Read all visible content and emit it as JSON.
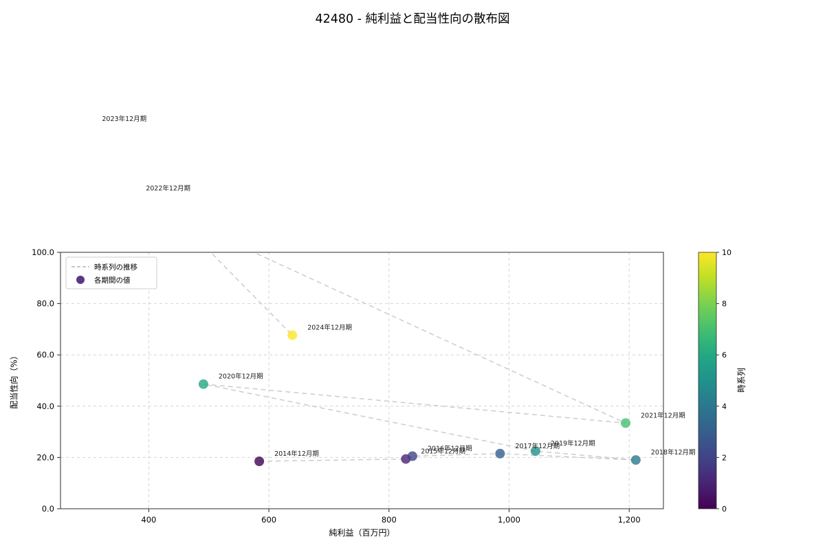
{
  "chart_data": {
    "type": "scatter",
    "title": "42480 - 純利益と配当性向の散布図",
    "xlabel": "純利益（百万円）",
    "ylabel": "配当性向（%）",
    "xlim": [
      253,
      1257
    ],
    "ylim": [
      0,
      100
    ],
    "xticks": [
      400,
      600,
      800,
      1000,
      1200
    ],
    "xtick_labels": [
      "400",
      "600",
      "800",
      "1,000",
      "1,200"
    ],
    "yticks": [
      0,
      20,
      40,
      60,
      80,
      100
    ],
    "ytick_labels": [
      "0.0",
      "20.0",
      "40.0",
      "60.0",
      "80.0",
      "100.0"
    ],
    "grid": true,
    "legend": {
      "position": "top-left",
      "items": [
        {
          "label": "時系列の推移",
          "marker": "dashed-line",
          "color": "#b5b5b5"
        },
        {
          "label": "各期間の値",
          "marker": "dot",
          "color": "#482475"
        }
      ]
    },
    "trend_line_color": "#c9c9c9",
    "grid_color": "#d3d3d3",
    "colorbar": {
      "label": "時系列",
      "min": 0,
      "max": 10,
      "ticks": [
        0,
        2,
        4,
        6,
        8,
        10
      ],
      "tick_labels": [
        "0",
        "2",
        "4",
        "6",
        "8",
        "10"
      ],
      "viridis_stops": [
        "#440154",
        "#482475",
        "#414487",
        "#355f8d",
        "#2a788e",
        "#21918c",
        "#22a884",
        "#44bf70",
        "#7ad151",
        "#bddf26",
        "#fde725"
      ]
    },
    "points": [
      {
        "label": "2014年12月期",
        "x": 584,
        "y": 18.5,
        "t": 0,
        "color": "#440154"
      },
      {
        "label": "2015年12月期",
        "x": 828,
        "y": 19.4,
        "t": 1,
        "color": "#482475"
      },
      {
        "label": "2016年12月期",
        "x": 839,
        "y": 20.5,
        "t": 2,
        "color": "#414487"
      },
      {
        "label": "2017年12月期",
        "x": 985,
        "y": 21.5,
        "t": 3,
        "color": "#355f8d"
      },
      {
        "label": "2018年12月期",
        "x": 1211,
        "y": 19.0,
        "t": 4,
        "color": "#2a788e"
      },
      {
        "label": "2019年12月期",
        "x": 1044,
        "y": 22.5,
        "t": 5,
        "color": "#21918c"
      },
      {
        "label": "2020年12月期",
        "x": 491,
        "y": 48.6,
        "t": 6,
        "color": "#22a884"
      },
      {
        "label": "2021年12月期",
        "x": 1194,
        "y": 33.4,
        "t": 7,
        "color": "#44bf70"
      },
      {
        "label": "2022年12月期",
        "x": 370,
        "y": 122.0,
        "t": 8,
        "color": "#7ad151"
      },
      {
        "label": "2023年12月期",
        "x": 297,
        "y": 149.0,
        "t": 9,
        "color": "#bddf26"
      },
      {
        "label": "2024年12月期",
        "x": 639,
        "y": 67.7,
        "t": 10,
        "color": "#fde725"
      }
    ]
  }
}
